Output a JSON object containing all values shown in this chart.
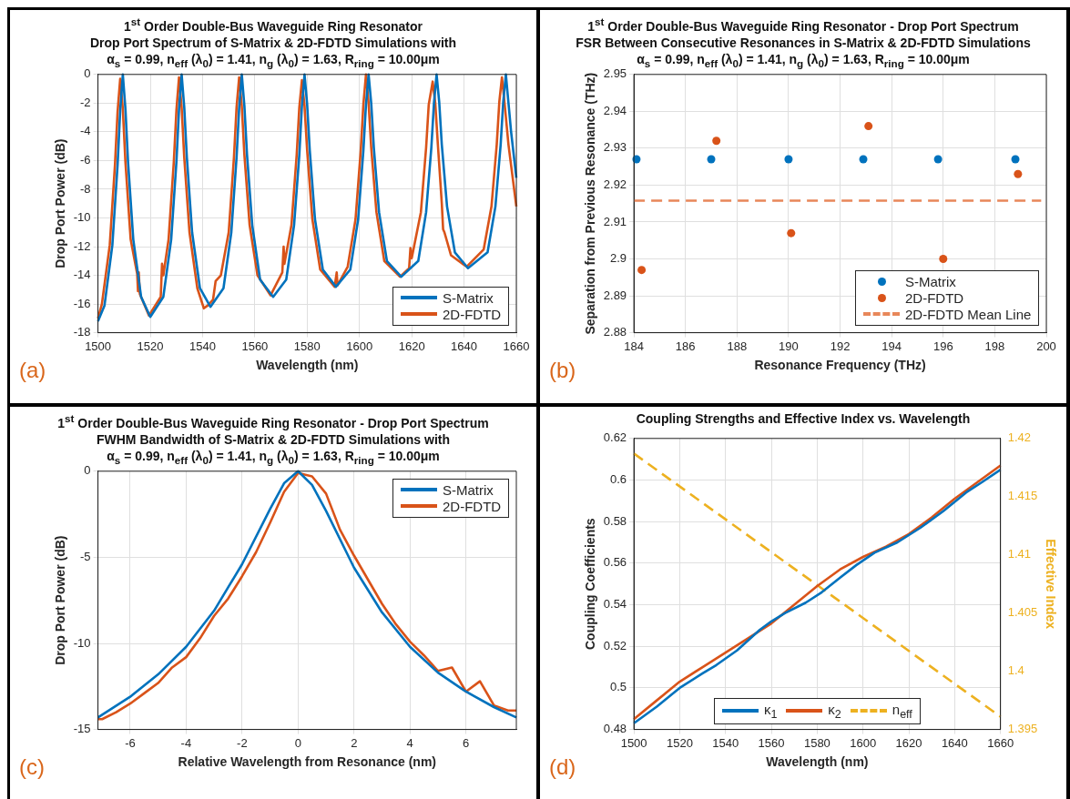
{
  "chart_data": [
    {
      "type": "line",
      "title": "1$^{st}$ Order Double-Bus Waveguide Ring Resonator\nDrop Port Spectrum of S-Matrix & 2D-FDTD Simulations with",
      "subtitle": "α$_{s}$ = 0.99, n$_{eff}$ (λ$_{0}$) = 1.41, n$_{g}$ (λ$_{0}$) = 1.63, R$_{ring}$ = 10.00μm",
      "xlabel": "Wavelength (nm)",
      "ylabel": "Drop Port Power (dB)",
      "annotations": [
        "(a)"
      ],
      "xlim": [
        1500,
        1660
      ],
      "xticks": [
        1500,
        1520,
        1540,
        1560,
        1580,
        1600,
        1620,
        1640,
        1660
      ],
      "ylim": [
        -18,
        0
      ],
      "yticks": [
        -18,
        -16,
        -14,
        -12,
        -10,
        -8,
        -6,
        -4,
        -2,
        0
      ],
      "grid": true,
      "legend": "bottom right",
      "series": [
        {
          "name": "S-Matrix",
          "color": "#0072bd",
          "x": [
            1500,
            1502.5,
            1505.5,
            1507.5,
            1508.5,
            1509.5,
            1510.5,
            1511.5,
            1513.5,
            1516.5,
            1520,
            1525,
            1528,
            1530,
            1531,
            1532,
            1533,
            1534,
            1536,
            1539,
            1543,
            1548,
            1551,
            1553,
            1554,
            1555,
            1556,
            1557,
            1559,
            1562,
            1567,
            1572,
            1575,
            1577,
            1578,
            1579,
            1580,
            1581,
            1583,
            1586,
            1591,
            1596.5,
            1599.5,
            1601.5,
            1602.5,
            1603.5,
            1604.5,
            1605.5,
            1607.5,
            1610.5,
            1616,
            1622.5,
            1625.5,
            1627.5,
            1628.5,
            1629.5,
            1630.5,
            1631.5,
            1633.5,
            1636.5,
            1641.5,
            1649,
            1652,
            1654,
            1655,
            1656,
            1657,
            1658,
            1660
          ],
          "values": [
            -17.2,
            -16.1,
            -11.9,
            -6.3,
            -2.5,
            0,
            -2.4,
            -6.1,
            -11.5,
            -15.5,
            -16.9,
            -15.5,
            -11.5,
            -6.1,
            -2.4,
            0,
            -2.3,
            -5.8,
            -11.0,
            -14.9,
            -16.2,
            -14.9,
            -11.0,
            -5.8,
            -2.3,
            0,
            -2.2,
            -5.6,
            -10.5,
            -14.3,
            -15.5,
            -14.3,
            -10.5,
            -5.6,
            -2.2,
            0,
            -2.1,
            -5.3,
            -10.1,
            -13.6,
            -14.8,
            -13.6,
            -10.1,
            -5.3,
            -2.1,
            0,
            -2.0,
            -5.1,
            -9.6,
            -13.0,
            -14.1,
            -13.0,
            -9.6,
            -5.1,
            -2.0,
            0,
            -1.9,
            -4.9,
            -9.2,
            -12.4,
            -13.5,
            -12.4,
            -9.2,
            -4.9,
            -1.9,
            0,
            -2.0,
            -4.0,
            -7.2
          ]
        },
        {
          "name": "2D-FDTD",
          "color": "#d95319",
          "x": [
            1500,
            1501.5,
            1504.5,
            1506.5,
            1507.5,
            1508.5,
            1509.5,
            1510.5,
            1512.5,
            1515,
            1515.3,
            1515.6,
            1516,
            1519.5,
            1524,
            1524.5,
            1525,
            1527,
            1529,
            1530,
            1531,
            1532,
            1533,
            1535,
            1538,
            1540.5,
            1542,
            1544,
            1545,
            1547,
            1550,
            1552,
            1553,
            1554,
            1555,
            1556,
            1558,
            1561,
            1566,
            1570.5,
            1571,
            1571.3,
            1574,
            1576,
            1577,
            1578,
            1579,
            1580,
            1582,
            1585,
            1590.5,
            1591.3,
            1591.6,
            1595.5,
            1598.5,
            1600.5,
            1601.5,
            1602.5,
            1603.5,
            1604.5,
            1606.5,
            1609.5,
            1615.5,
            1619,
            1619.5,
            1620,
            1623.5,
            1625.5,
            1626.5,
            1628,
            1629,
            1630,
            1631.5,
            1632,
            1632.5,
            1635,
            1641,
            1647.5,
            1650.5,
            1652.5,
            1653.5,
            1654.5,
            1655.5,
            1657,
            1660
          ],
          "values": [
            -17.0,
            -16.0,
            -11.9,
            -6.3,
            -2.6,
            -0.3,
            -2.4,
            -6.1,
            -11.5,
            -13.9,
            -15.1,
            -13.8,
            -15.3,
            -16.8,
            -15.5,
            -13.2,
            -14.0,
            -11.5,
            -6.1,
            -2.5,
            -0.2,
            -2.3,
            -5.8,
            -11.0,
            -14.9,
            -16.3,
            -16.1,
            -15.7,
            -14.4,
            -14.0,
            -11.0,
            -5.8,
            -2.3,
            -0.2,
            -2.2,
            -5.6,
            -10.5,
            -14.0,
            -15.4,
            -13.8,
            -12.0,
            -13.2,
            -10.5,
            -5.6,
            -2.3,
            -0.4,
            -2.2,
            -5.3,
            -10.1,
            -13.6,
            -14.8,
            -13.8,
            -14.7,
            -13.4,
            -10.1,
            -5.3,
            -2.1,
            0,
            -2.0,
            -5.1,
            -9.6,
            -13.0,
            -14.1,
            -13.5,
            -12.1,
            -12.8,
            -9.6,
            -5.1,
            -2.1,
            -0.5,
            -2.0,
            -4.9,
            -9.0,
            -10.8,
            -11.0,
            -12.6,
            -13.4,
            -12.2,
            -9.2,
            -4.9,
            -1.9,
            -0.2,
            -2.0,
            -4.9,
            -9.2
          ]
        }
      ]
    },
    {
      "type": "scatter",
      "title": "1$^{st}$ Order Double-Bus Waveguide Ring Resonator - Drop Port Spectrum\nFSR Between Consecutive Resonances in S-Matrix & 2D-FDTD Simulations",
      "subtitle": "α$_{s}$ = 0.99, n$_{eff}$ (λ$_{0}$) = 1.41, n$_{g}$ (λ$_{0}$) = 1.63, R$_{ring}$ = 10.00μm",
      "xlabel": "Resonance Frequency (THz)",
      "ylabel": "Separation from Previous Resonance (THz)",
      "annotations": [
        "(b)"
      ],
      "xlim": [
        184,
        200
      ],
      "xticks": [
        184,
        186,
        188,
        190,
        192,
        194,
        196,
        198,
        200
      ],
      "ylim": [
        2.88,
        2.95
      ],
      "yticks": [
        2.88,
        2.89,
        2.9,
        2.91,
        2.92,
        2.93,
        2.94,
        2.95
      ],
      "grid": true,
      "legend": "bottom right",
      "marker": "circle",
      "series": [
        {
          "name": "S-Matrix",
          "color": "#0072bd",
          "x": [
            184.1,
            187.0,
            190.0,
            192.9,
            195.8,
            198.8
          ],
          "values": [
            2.927,
            2.927,
            2.927,
            2.927,
            2.927,
            2.927
          ]
        },
        {
          "name": "2D-FDTD",
          "color": "#d95319",
          "x": [
            184.3,
            187.2,
            190.1,
            193.1,
            196.0,
            198.9
          ],
          "values": [
            2.897,
            2.932,
            2.907,
            2.936,
            2.9,
            2.923
          ]
        },
        {
          "name": "2D-FDTD Mean Line",
          "type": "line",
          "marker": "none",
          "line_style": "dashed",
          "color": "#e8875a",
          "x": [
            184,
            199.8
          ],
          "values": [
            2.9158,
            2.9158
          ]
        }
      ]
    },
    {
      "type": "line",
      "title": "1$^{st}$ Order Double-Bus Waveguide Ring Resonator - Drop Port Spectrum\nFWHM Bandwidth of S-Matrix & 2D-FDTD Simulations with",
      "subtitle": "α$_{s}$ = 0.99, n$_{eff}$ (λ$_{0}$) = 1.41, n$_{g}$ (λ$_{0}$) = 1.63, R$_{ring}$ = 10.00μm",
      "xlabel": "Relative Wavelength from Resonance (nm)",
      "ylabel": "Drop Port Power (dB)",
      "annotations": [
        "(c)"
      ],
      "xlim": [
        -7.15,
        7.8
      ],
      "xticks": [
        -6,
        -4,
        -2,
        0,
        2,
        4,
        6
      ],
      "ylim": [
        -15,
        0
      ],
      "yticks": [
        -15,
        -10,
        -5,
        0
      ],
      "grid": true,
      "legend": "top right",
      "series": [
        {
          "name": "S-Matrix",
          "color": "#0072bd",
          "x": [
            -7.15,
            -6,
            -5,
            -4,
            -3,
            -2,
            -1,
            -0.5,
            0,
            0.5,
            1,
            2,
            3,
            4,
            5,
            6,
            7,
            7.8
          ],
          "values": [
            -14.3,
            -13.1,
            -11.8,
            -10.2,
            -8.1,
            -5.4,
            -2.2,
            -0.7,
            0,
            -0.8,
            -2.3,
            -5.6,
            -8.2,
            -10.2,
            -11.7,
            -12.8,
            -13.7,
            -14.3
          ]
        },
        {
          "name": "2D-FDTD",
          "color": "#d95319",
          "x": [
            -7.15,
            -7,
            -6.5,
            -6,
            -5.5,
            -5,
            -4.5,
            -4,
            -3.5,
            -3,
            -2.5,
            -2,
            -1.5,
            -1,
            -0.5,
            0,
            0.5,
            1,
            1.5,
            2,
            2.5,
            3,
            3.5,
            4,
            4.5,
            5,
            5.5,
            6,
            6.5,
            7,
            7.5,
            7.8
          ],
          "values": [
            -14.4,
            -14.4,
            -14.0,
            -13.5,
            -12.9,
            -12.3,
            -11.4,
            -10.8,
            -9.7,
            -8.4,
            -7.4,
            -6.1,
            -4.7,
            -3.0,
            -1.2,
            -0.1,
            -0.3,
            -1.3,
            -3.4,
            -4.9,
            -6.3,
            -7.7,
            -8.9,
            -9.9,
            -10.7,
            -11.6,
            -11.4,
            -12.8,
            -12.2,
            -13.6,
            -13.9,
            -13.9
          ]
        }
      ]
    },
    {
      "type": "line",
      "title": "Coupling Strengths and Effective Index vs. Wavelength",
      "xlabel": "Wavelength (nm)",
      "ylabel": "Coupling Coefficients",
      "y2label": "Effective Index",
      "annotations": [
        "(d)"
      ],
      "xlim": [
        1500,
        1660
      ],
      "xticks": [
        1500,
        1520,
        1540,
        1560,
        1580,
        1600,
        1620,
        1640,
        1660
      ],
      "ylim": [
        0.48,
        0.62
      ],
      "yticks": [
        0.48,
        0.5,
        0.52,
        0.54,
        0.56,
        0.58,
        0.6,
        0.62
      ],
      "y2lim": [
        1.395,
        1.42
      ],
      "y2ticks": [
        1.395,
        1.4,
        1.405,
        1.41,
        1.415,
        1.42
      ],
      "grid": true,
      "legend": "bottom",
      "series": [
        {
          "name": "κ$_{1}$",
          "color": "#0072bd",
          "x": [
            1500,
            1510,
            1520,
            1530,
            1536,
            1545,
            1555,
            1560,
            1566,
            1575,
            1582,
            1590,
            1597,
            1605,
            1615,
            1625,
            1635,
            1645,
            1652,
            1660
          ],
          "values": [
            0.483,
            0.491,
            0.5,
            0.507,
            0.511,
            0.518,
            0.528,
            0.532,
            0.536,
            0.541,
            0.546,
            0.553,
            0.559,
            0.565,
            0.57,
            0.577,
            0.585,
            0.594,
            0.599,
            0.605
          ]
        },
        {
          "name": "κ$_{2}$",
          "color": "#d95319",
          "x": [
            1500,
            1510,
            1520,
            1530,
            1540,
            1550,
            1560,
            1570,
            1580,
            1590,
            1600,
            1610,
            1620,
            1630,
            1640,
            1650,
            1660
          ],
          "values": [
            0.485,
            0.494,
            0.503,
            0.51,
            0.517,
            0.524,
            0.531,
            0.54,
            0.549,
            0.557,
            0.563,
            0.568,
            0.574,
            0.582,
            0.591,
            0.599,
            0.607
          ]
        },
        {
          "name": "n$_{eff}$",
          "color": "#edb120",
          "line_style": "dashed",
          "axis": "y2",
          "x": [
            1500,
            1660
          ],
          "values": [
            1.4187,
            1.3961
          ]
        }
      ]
    }
  ]
}
